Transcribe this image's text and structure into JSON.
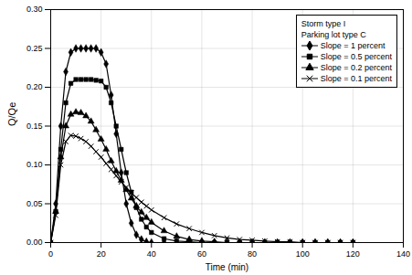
{
  "chart_data": {
    "type": "line",
    "x_label": "Time (min)",
    "y_label": "Q/Qe",
    "annotations": [
      "Storm type I",
      "Parking lot type C"
    ],
    "legend": "top-right",
    "grid": true,
    "xlim": [
      0,
      140
    ],
    "xticks": [
      0,
      20,
      40,
      60,
      80,
      100,
      120,
      140
    ],
    "ylim": [
      0,
      0.3
    ],
    "yticks": [
      {
        "value": 0,
        "label": "0.00"
      },
      {
        "value": 0.05,
        "label": "0.05"
      },
      {
        "value": 0.1,
        "label": "0.10"
      },
      {
        "value": 0.15,
        "label": "0.15"
      },
      {
        "value": 0.2,
        "label": "0.20"
      },
      {
        "value": 0.25,
        "label": "0.25"
      },
      {
        "value": 0.3,
        "label": "0.30"
      }
    ],
    "x": [
      0,
      2,
      4,
      6,
      8,
      10,
      12,
      14,
      16,
      18,
      20,
      22,
      24,
      26,
      28,
      30,
      32,
      34,
      36,
      38,
      40,
      45,
      50,
      55,
      60,
      65,
      70,
      75,
      80,
      85,
      90,
      95,
      100,
      105,
      110,
      115,
      120
    ],
    "series": [
      {
        "name": "Slope = 1 percent",
        "color": "#000000",
        "marker": "diamond",
        "values": [
          0,
          0.05,
          0.15,
          0.22,
          0.245,
          0.25,
          0.25,
          0.25,
          0.25,
          0.25,
          0.245,
          0.23,
          0.19,
          0.14,
          0.09,
          0.05,
          0.025,
          0.01,
          0.004,
          0.001,
          0,
          0,
          0,
          0,
          0,
          0,
          0,
          0,
          0,
          0,
          0,
          0,
          0,
          0,
          0,
          0,
          0
        ]
      },
      {
        "name": "Slope = 0.5 percent",
        "color": "#000000",
        "marker": "square",
        "values": [
          0,
          0.04,
          0.12,
          0.18,
          0.205,
          0.21,
          0.21,
          0.21,
          0.21,
          0.209,
          0.208,
          0.2,
          0.18,
          0.15,
          0.12,
          0.09,
          0.065,
          0.045,
          0.03,
          0.02,
          0.013,
          0.005,
          0.002,
          0.001,
          0,
          0,
          0,
          0,
          0,
          0,
          0,
          0,
          0,
          0,
          0,
          0,
          0
        ]
      },
      {
        "name": "Slope = 0.2 percent",
        "color": "#000000",
        "marker": "triangle",
        "values": [
          0,
          0.04,
          0.11,
          0.15,
          0.165,
          0.168,
          0.167,
          0.163,
          0.156,
          0.145,
          0.133,
          0.12,
          0.105,
          0.092,
          0.08,
          0.068,
          0.057,
          0.047,
          0.039,
          0.032,
          0.026,
          0.015,
          0.008,
          0.004,
          0.002,
          0.001,
          0,
          0,
          0,
          0,
          0,
          0,
          0,
          0,
          0,
          0,
          0
        ]
      },
      {
        "name": "Slope = 0.1 percent",
        "color": "#000000",
        "marker": "times",
        "values": [
          0,
          0.035,
          0.1,
          0.13,
          0.138,
          0.137,
          0.134,
          0.13,
          0.124,
          0.117,
          0.11,
          0.102,
          0.094,
          0.086,
          0.078,
          0.071,
          0.064,
          0.058,
          0.052,
          0.047,
          0.042,
          0.032,
          0.024,
          0.018,
          0.013,
          0.009,
          0.006,
          0.004,
          0.003,
          0.002,
          0.001,
          0.001,
          0,
          0,
          0,
          0,
          0
        ]
      }
    ]
  }
}
